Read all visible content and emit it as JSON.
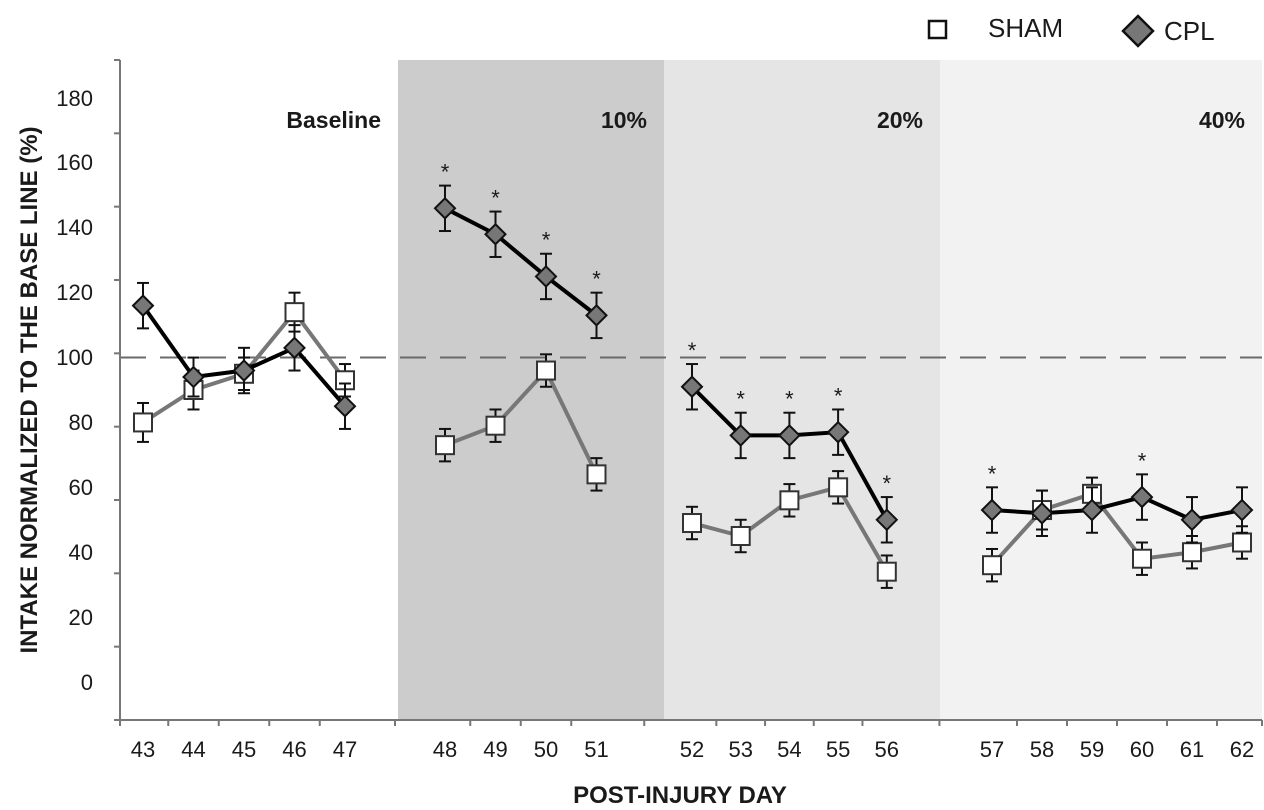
{
  "chart_data": {
    "type": "line",
    "xlabel": "POST-INJURY DAY",
    "ylabel": "INTAKE NORMALIZED TO THE BASE LINE (%)",
    "ylim": [
      0,
      180
    ],
    "yticks": [
      "0",
      "20",
      "40",
      "60",
      "80",
      "100",
      "120",
      "140",
      "160",
      "180"
    ],
    "reference_line": 100,
    "legend": {
      "placement": "top-right",
      "items": [
        "SHAM",
        "CPL"
      ]
    },
    "phases": [
      {
        "label": "Baseline",
        "days": [
          43,
          44,
          45,
          46,
          47
        ],
        "color": "#ffffff"
      },
      {
        "label": "10%",
        "days": [
          48,
          49,
          50,
          51
        ],
        "color": "#cccccc"
      },
      {
        "label": "20%",
        "days": [
          52,
          53,
          54,
          55,
          56
        ],
        "color": "#e5e5e5"
      },
      {
        "label": "40%",
        "days": [
          57,
          58,
          59,
          60,
          61,
          62
        ],
        "color": "#f2f2f2"
      }
    ],
    "series": [
      {
        "name": "SHAM",
        "marker": "square",
        "line_color": "#777777",
        "segments": [
          {
            "x": [
              43,
              44,
              45,
              46,
              47
            ],
            "y": [
              80,
              90,
              95,
              114,
              93
            ],
            "err": [
              6,
              6,
              5,
              6,
              5
            ]
          },
          {
            "x": [
              48,
              49,
              50,
              51
            ],
            "y": [
              73,
              79,
              96,
              64
            ],
            "err": [
              5,
              5,
              5,
              5
            ]
          },
          {
            "x": [
              52,
              53,
              54,
              55,
              56
            ],
            "y": [
              49,
              45,
              56,
              60,
              34
            ],
            "err": [
              5,
              5,
              5,
              5,
              5
            ]
          },
          {
            "x": [
              57,
              58,
              59,
              60,
              61,
              62
            ],
            "y": [
              36,
              53,
              58,
              38,
              40,
              43
            ],
            "err": [
              5,
              6,
              5,
              5,
              5,
              5
            ]
          }
        ]
      },
      {
        "name": "CPL",
        "marker": "diamond",
        "line_color": "#000000",
        "segments": [
          {
            "x": [
              43,
              44,
              45,
              46,
              47
            ],
            "y": [
              116,
              94,
              96,
              103,
              85
            ],
            "err": [
              7,
              6,
              7,
              7,
              7
            ]
          },
          {
            "x": [
              48,
              49,
              50,
              51
            ],
            "y": [
              146,
              138,
              125,
              113
            ],
            "err": [
              7,
              7,
              7,
              7
            ]
          },
          {
            "x": [
              52,
              53,
              54,
              55,
              56
            ],
            "y": [
              91,
              76,
              76,
              77,
              50
            ],
            "err": [
              7,
              7,
              7,
              7,
              7
            ]
          },
          {
            "x": [
              57,
              58,
              59,
              60,
              61,
              62
            ],
            "y": [
              53,
              52,
              53,
              57,
              50,
              53
            ],
            "err": [
              7,
              7,
              7,
              7,
              7,
              7
            ]
          }
        ]
      }
    ],
    "significance_marker": "*",
    "significant_days": [
      48,
      49,
      50,
      51,
      52,
      53,
      54,
      55,
      56,
      57,
      60
    ]
  }
}
